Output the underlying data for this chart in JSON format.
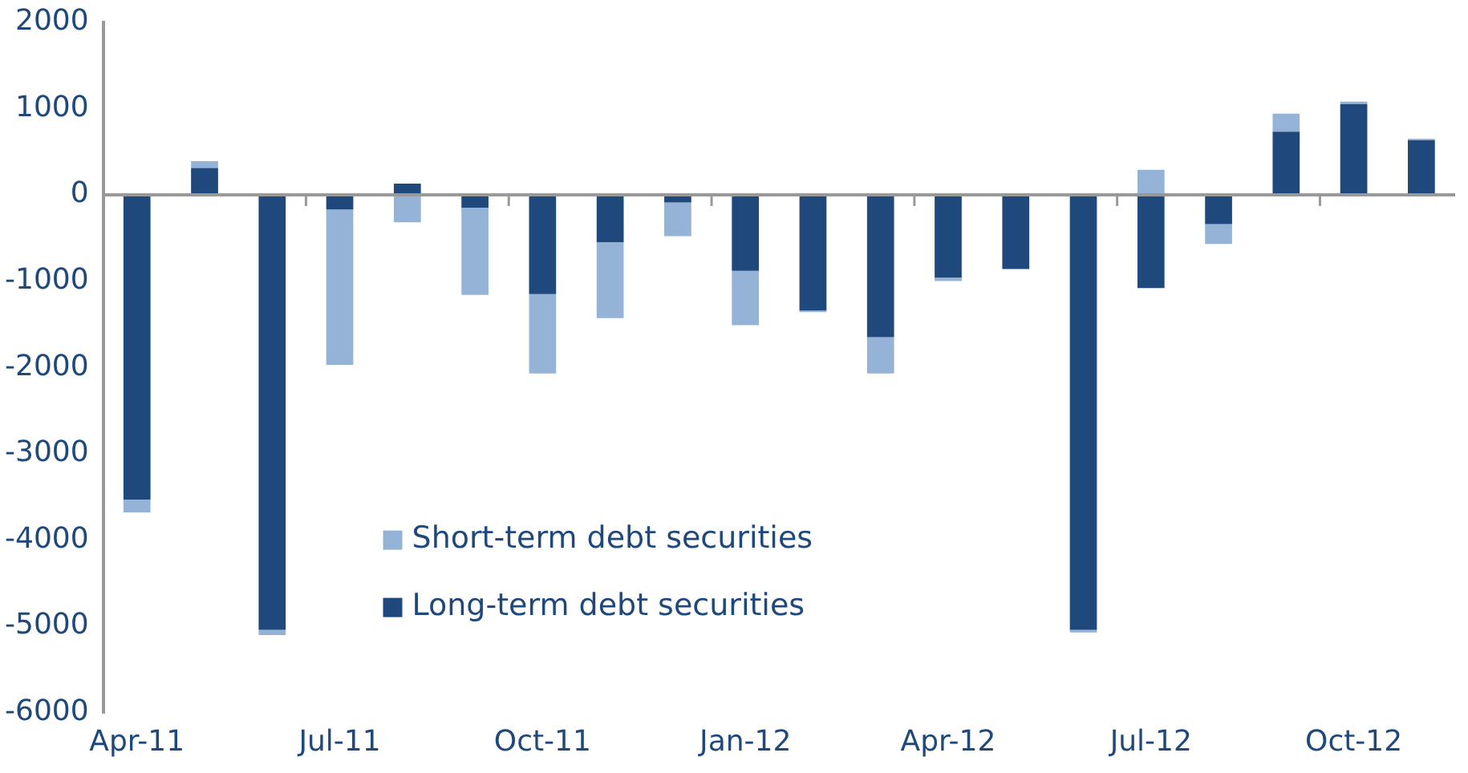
{
  "chart_data": {
    "type": "bar",
    "stacked": true,
    "categories": [
      "Apr-11",
      null,
      null,
      "Jul-11",
      null,
      null,
      "Oct-11",
      null,
      null,
      "Jan-12",
      null,
      null,
      "Apr-12",
      null,
      null,
      "Jul-12",
      null,
      null,
      "Oct-12",
      null
    ],
    "series": [
      {
        "name": "Long-term debt securities",
        "color": "#1f497d",
        "values": [
          -3530,
          310,
          -5040,
          -170,
          130,
          -150,
          -1150,
          -550,
          -90,
          -880,
          -1340,
          -1650,
          -960,
          -860,
          -5040,
          -1080,
          -340,
          730,
          1050,
          630
        ]
      },
      {
        "name": "Short-term debt securities",
        "color": "#95b3d7",
        "values": [
          -150,
          80,
          -60,
          -1800,
          -320,
          -1010,
          -920,
          -880,
          -390,
          -630,
          -20,
          -420,
          -40,
          0,
          -30,
          290,
          -230,
          210,
          30,
          20
        ]
      }
    ],
    "ylim": [
      -6000,
      2000
    ],
    "yticks": [
      -6000,
      -5000,
      -4000,
      -3000,
      -2000,
      -1000,
      0,
      1000,
      2000
    ],
    "ref_lines": [
      {
        "axis": "y",
        "value": 0,
        "color": "#999999"
      }
    ],
    "grid": false,
    "legend": "bottom center"
  }
}
